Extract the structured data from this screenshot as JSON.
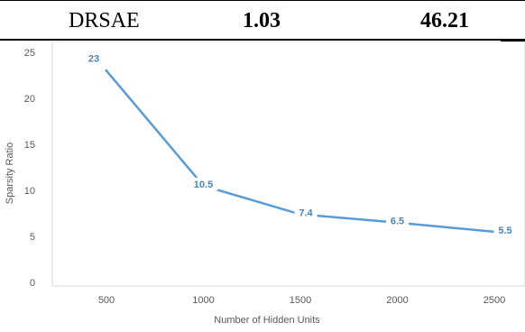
{
  "table_row": {
    "method": "DRSAE",
    "value_1": "1.03",
    "value_2": "46.21"
  },
  "chart_data": {
    "type": "line",
    "categories": [
      "500",
      "1000",
      "1500",
      "2000",
      "2500"
    ],
    "series": [
      {
        "values": [
          23,
          10.5,
          7.4,
          6.5,
          5.5
        ],
        "color": "#5b9bd5"
      }
    ],
    "data_labels": [
      "23",
      "10.5",
      "7.4",
      "6.5",
      "5.5"
    ],
    "title": "",
    "xlabel": "Number of Hidden Units",
    "ylabel": "Sparsity Ratio",
    "ylim": [
      0,
      25
    ],
    "yticks": [
      "0",
      "5",
      "10",
      "15",
      "20",
      "25"
    ],
    "grid": false,
    "legend": "none",
    "colors": {
      "line": "#5b9bd5",
      "label": "#4a86b8",
      "frame": "#d9d9d9",
      "tick_text": "#595959"
    }
  }
}
